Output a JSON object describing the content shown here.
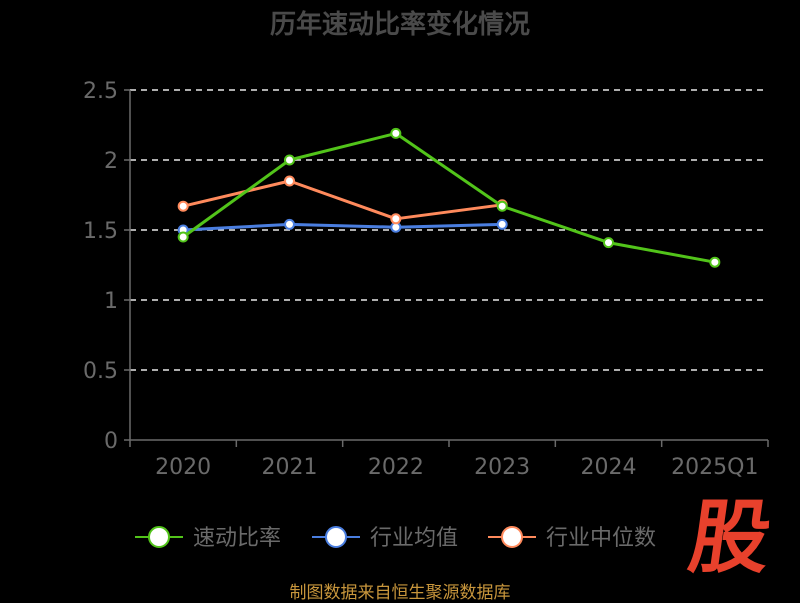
{
  "chart_data": {
    "type": "line",
    "title": "历年速动比率变化情况",
    "categories": [
      "2020",
      "2021",
      "2022",
      "2023",
      "2024",
      "2025Q1"
    ],
    "ylim": [
      0,
      2.5
    ],
    "yticks": [
      "0",
      "0.5",
      "1",
      "1.5",
      "2",
      "2.5"
    ],
    "grid": true,
    "legend_position": "bottom",
    "series": [
      {
        "name": "速动比率",
        "color": "#52c41a",
        "values": [
          1.45,
          2.0,
          2.19,
          1.67,
          1.41,
          1.27
        ]
      },
      {
        "name": "行业均值",
        "color": "#4a7ee0",
        "values": [
          1.5,
          1.54,
          1.52,
          1.54,
          null,
          null
        ]
      },
      {
        "name": "行业中位数",
        "color": "#ff8a5c",
        "values": [
          1.67,
          1.85,
          1.58,
          1.68,
          null,
          null
        ]
      }
    ]
  },
  "watermark_text": "股",
  "footer_text": "制图数据来自恒生聚源数据库"
}
